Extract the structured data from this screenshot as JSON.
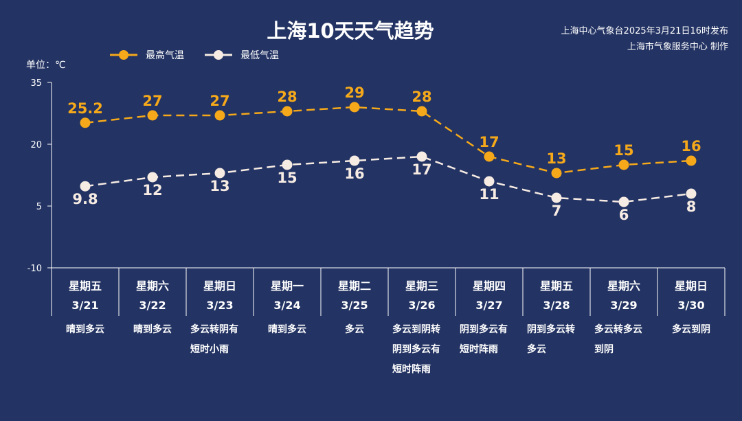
{
  "header": {
    "source_line1": "上海中心气象台2025年3月21日16时发布",
    "source_line2": "上海市气象服务中心 制作"
  },
  "colors": {
    "background": "#233363",
    "high": "#f5a91a",
    "low": "#f7ece4",
    "axis": "#ffffff"
  },
  "chart_data": {
    "type": "line",
    "title": "上海10天天气趋势",
    "ylabel": "单位：℃",
    "ylim": [
      -10,
      35
    ],
    "yticks": [
      "35",
      "20",
      "5",
      "-10"
    ],
    "yticks_values": [
      35,
      20,
      5,
      -10
    ],
    "grid": false,
    "legend_position": "top-left",
    "categories": [
      {
        "weekday": "星期五",
        "date": "3/21",
        "weather": [
          "晴到多云"
        ]
      },
      {
        "weekday": "星期六",
        "date": "3/22",
        "weather": [
          "晴到多云"
        ]
      },
      {
        "weekday": "星期日",
        "date": "3/23",
        "weather": [
          "多云转阴有",
          "短时小雨"
        ]
      },
      {
        "weekday": "星期一",
        "date": "3/24",
        "weather": [
          "晴到多云"
        ]
      },
      {
        "weekday": "星期二",
        "date": "3/25",
        "weather": [
          "多云"
        ]
      },
      {
        "weekday": "星期三",
        "date": "3/26",
        "weather": [
          "多云到阴转",
          "阴到多云有",
          "短时阵雨"
        ]
      },
      {
        "weekday": "星期四",
        "date": "3/27",
        "weather": [
          "阴到多云有",
          "短时阵雨"
        ]
      },
      {
        "weekday": "星期五",
        "date": "3/28",
        "weather": [
          "阴到多云转",
          "多云"
        ]
      },
      {
        "weekday": "星期六",
        "date": "3/29",
        "weather": [
          "多云转多云",
          "到阴"
        ]
      },
      {
        "weekday": "星期日",
        "date": "3/30",
        "weather": [
          "多云到阴"
        ]
      }
    ],
    "series": [
      {
        "name": "最高气温",
        "values": [
          25.2,
          27,
          27,
          28,
          29,
          28,
          17,
          13,
          15,
          16
        ],
        "labels": [
          "25.2",
          "27",
          "27",
          "28",
          "29",
          "28",
          "17",
          "13",
          "15",
          "16"
        ]
      },
      {
        "name": "最低气温",
        "values": [
          9.8,
          12,
          13,
          15,
          16,
          17,
          11,
          7,
          6,
          8
        ],
        "labels": [
          "9.8",
          "12",
          "13",
          "15",
          "16",
          "17",
          "11",
          "7",
          "6",
          "8"
        ]
      }
    ]
  }
}
